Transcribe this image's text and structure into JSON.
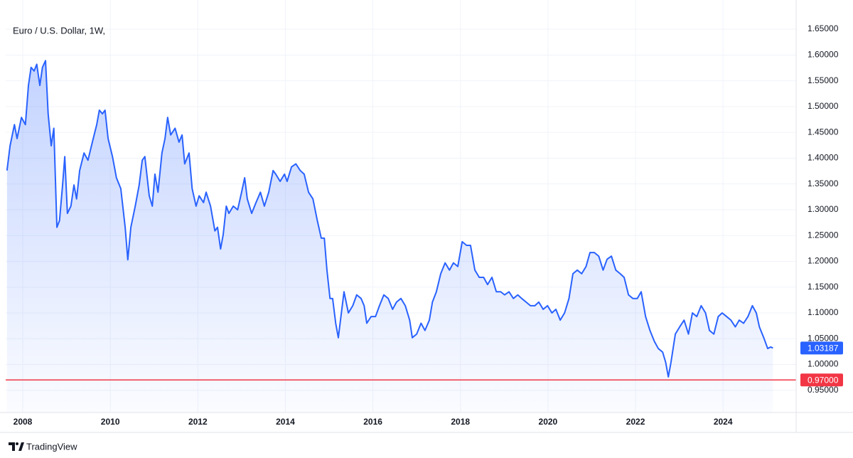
{
  "chart_data": {
    "type": "area",
    "title": "Euro / U.S. Dollar, 1W,",
    "brand": "TradingView",
    "grid": true,
    "xlim": [
      2007.61,
      2025.67
    ],
    "ylim": [
      0.907,
      1.668
    ],
    "xticks": [
      2008,
      2010,
      2012,
      2014,
      2016,
      2018,
      2020,
      2022,
      2024
    ],
    "yticks": [
      {
        "value": 0.95,
        "label": "0.95000"
      },
      {
        "value": 1.0,
        "label": "1.00000"
      },
      {
        "value": 1.05,
        "label": "1.05000"
      },
      {
        "value": 1.1,
        "label": "1.10000"
      },
      {
        "value": 1.15,
        "label": "1.15000"
      },
      {
        "value": 1.2,
        "label": "1.20000"
      },
      {
        "value": 1.25,
        "label": "1.25000"
      },
      {
        "value": 1.3,
        "label": "1.30000"
      },
      {
        "value": 1.35,
        "label": "1.35000"
      },
      {
        "value": 1.4,
        "label": "1.40000"
      },
      {
        "value": 1.45,
        "label": "1.45000"
      },
      {
        "value": 1.5,
        "label": "1.50000"
      },
      {
        "value": 1.55,
        "label": "1.55000"
      },
      {
        "value": 1.6,
        "label": "1.60000"
      },
      {
        "value": 1.65,
        "label": "1.65000"
      }
    ],
    "hline": {
      "value": 0.97,
      "label": "0.97000",
      "color": "#f23645"
    },
    "x": [
      2007.64,
      2007.71,
      2007.81,
      2007.87,
      2007.97,
      2008.06,
      2008.13,
      2008.19,
      2008.26,
      2008.32,
      2008.39,
      2008.45,
      2008.52,
      2008.58,
      2008.65,
      2008.71,
      2008.78,
      2008.84,
      2008.91,
      2008.96,
      2009.02,
      2009.1,
      2009.17,
      2009.23,
      2009.3,
      2009.4,
      2009.49,
      2009.59,
      2009.69,
      2009.75,
      2009.82,
      2009.88,
      2009.95,
      2010.05,
      2010.14,
      2010.24,
      2010.34,
      2010.4,
      2010.47,
      2010.57,
      2010.66,
      2010.73,
      2010.79,
      2010.89,
      2010.96,
      2011.02,
      2011.09,
      2011.18,
      2011.25,
      2011.31,
      2011.38,
      2011.48,
      2011.57,
      2011.64,
      2011.7,
      2011.8,
      2011.87,
      2011.96,
      2012.03,
      2012.13,
      2012.19,
      2012.29,
      2012.39,
      2012.45,
      2012.52,
      2012.58,
      2012.65,
      2012.71,
      2012.81,
      2012.91,
      2013.0,
      2013.07,
      2013.13,
      2013.23,
      2013.33,
      2013.43,
      2013.52,
      2013.62,
      2013.72,
      2013.78,
      2013.88,
      2013.98,
      2014.04,
      2014.14,
      2014.24,
      2014.34,
      2014.43,
      2014.53,
      2014.63,
      2014.73,
      2014.82,
      2014.89,
      2014.95,
      2015.02,
      2015.08,
      2015.15,
      2015.21,
      2015.28,
      2015.34,
      2015.44,
      2015.54,
      2015.63,
      2015.73,
      2015.8,
      2015.86,
      2015.96,
      2016.06,
      2016.15,
      2016.25,
      2016.35,
      2016.45,
      2016.54,
      2016.64,
      2016.74,
      2016.84,
      2016.9,
      2017.0,
      2017.1,
      2017.19,
      2017.29,
      2017.36,
      2017.45,
      2017.55,
      2017.65,
      2017.75,
      2017.84,
      2017.94,
      2018.04,
      2018.14,
      2018.23,
      2018.33,
      2018.43,
      2018.53,
      2018.62,
      2018.72,
      2018.82,
      2018.92,
      2019.01,
      2019.11,
      2019.21,
      2019.31,
      2019.4,
      2019.5,
      2019.6,
      2019.7,
      2019.79,
      2019.89,
      2019.99,
      2020.09,
      2020.18,
      2020.28,
      2020.38,
      2020.48,
      2020.57,
      2020.67,
      2020.77,
      2020.87,
      2020.96,
      2021.06,
      2021.16,
      2021.26,
      2021.35,
      2021.45,
      2021.55,
      2021.65,
      2021.74,
      2021.84,
      2021.94,
      2022.04,
      2022.13,
      2022.23,
      2022.33,
      2022.43,
      2022.52,
      2022.62,
      2022.69,
      2022.75,
      2022.81,
      2022.91,
      2023.01,
      2023.11,
      2023.21,
      2023.3,
      2023.4,
      2023.5,
      2023.6,
      2023.69,
      2023.79,
      2023.89,
      2023.98,
      2024.08,
      2024.18,
      2024.28,
      2024.37,
      2024.47,
      2024.57,
      2024.67,
      2024.76,
      2024.83,
      2024.93,
      2025.02,
      2025.09,
      2025.14
    ],
    "series": [
      {
        "name": "EUR/USD",
        "color": "#2962ff",
        "values": [
          1.376,
          1.424,
          1.465,
          1.438,
          1.479,
          1.465,
          1.541,
          1.576,
          1.569,
          1.582,
          1.541,
          1.576,
          1.589,
          1.486,
          1.424,
          1.458,
          1.266,
          1.279,
          1.348,
          1.403,
          1.293,
          1.307,
          1.348,
          1.321,
          1.376,
          1.41,
          1.396,
          1.431,
          1.465,
          1.493,
          1.486,
          1.493,
          1.438,
          1.403,
          1.362,
          1.341,
          1.266,
          1.203,
          1.266,
          1.307,
          1.348,
          1.396,
          1.403,
          1.327,
          1.307,
          1.369,
          1.334,
          1.41,
          1.438,
          1.479,
          1.445,
          1.458,
          1.431,
          1.445,
          1.389,
          1.41,
          1.341,
          1.307,
          1.327,
          1.314,
          1.334,
          1.307,
          1.259,
          1.266,
          1.224,
          1.252,
          1.307,
          1.293,
          1.307,
          1.3,
          1.334,
          1.362,
          1.321,
          1.293,
          1.314,
          1.334,
          1.307,
          1.334,
          1.376,
          1.369,
          1.355,
          1.369,
          1.355,
          1.383,
          1.389,
          1.376,
          1.369,
          1.334,
          1.321,
          1.279,
          1.245,
          1.245,
          1.183,
          1.128,
          1.128,
          1.08,
          1.052,
          1.1,
          1.141,
          1.1,
          1.114,
          1.135,
          1.128,
          1.114,
          1.08,
          1.093,
          1.093,
          1.114,
          1.135,
          1.128,
          1.107,
          1.121,
          1.128,
          1.114,
          1.086,
          1.052,
          1.059,
          1.08,
          1.066,
          1.086,
          1.121,
          1.141,
          1.176,
          1.197,
          1.183,
          1.197,
          1.19,
          1.238,
          1.231,
          1.231,
          1.183,
          1.169,
          1.169,
          1.155,
          1.169,
          1.141,
          1.141,
          1.135,
          1.141,
          1.128,
          1.135,
          1.128,
          1.121,
          1.114,
          1.114,
          1.121,
          1.107,
          1.114,
          1.1,
          1.107,
          1.086,
          1.1,
          1.128,
          1.176,
          1.183,
          1.176,
          1.19,
          1.217,
          1.217,
          1.21,
          1.183,
          1.204,
          1.21,
          1.183,
          1.176,
          1.169,
          1.135,
          1.128,
          1.128,
          1.141,
          1.093,
          1.066,
          1.045,
          1.031,
          1.024,
          1.004,
          0.976,
          1.004,
          1.059,
          1.073,
          1.086,
          1.059,
          1.1,
          1.093,
          1.114,
          1.1,
          1.066,
          1.059,
          1.093,
          1.1,
          1.093,
          1.086,
          1.073,
          1.086,
          1.08,
          1.093,
          1.114,
          1.1,
          1.073,
          1.052,
          1.031,
          1.034,
          1.03187
        ]
      }
    ]
  }
}
